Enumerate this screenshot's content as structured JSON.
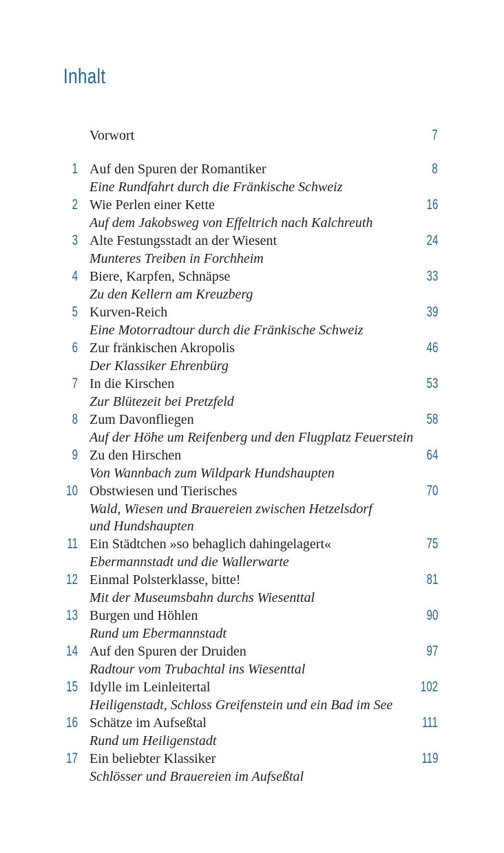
{
  "page": {
    "title": "Inhalt",
    "accent_color": "#25668f",
    "text_color": "#1d1d1b"
  },
  "toc": {
    "preface": {
      "label": "Vorwort",
      "page": "7"
    },
    "entries": [
      {
        "num": "1",
        "title": "Auf den Spuren der Romantiker",
        "page": "8",
        "subtitle_lines": [
          "Eine Rundfahrt durch die Fränkische Schweiz"
        ]
      },
      {
        "num": "2",
        "title": "Wie Perlen einer Kette",
        "page": "16",
        "subtitle_lines": [
          "Auf dem Jakobsweg von Effeltrich nach Kalchreuth"
        ]
      },
      {
        "num": "3",
        "title": "Alte Festungsstadt an der Wiesent",
        "page": "24",
        "subtitle_lines": [
          "Munteres Treiben in Forchheim"
        ]
      },
      {
        "num": "4",
        "title": "Biere, Karpfen, Schnäpse",
        "page": "33",
        "subtitle_lines": [
          "Zu den Kellern am Kreuzberg"
        ]
      },
      {
        "num": "5",
        "title": "Kurven-Reich",
        "page": "39",
        "subtitle_lines": [
          "Eine Motorradtour durch die Fränkische Schweiz"
        ]
      },
      {
        "num": "6",
        "title": "Zur fränkischen Akropolis",
        "page": "46",
        "subtitle_lines": [
          "Der Klassiker Ehrenbürg"
        ]
      },
      {
        "num": "7",
        "title": "In die Kirschen",
        "page": "53",
        "subtitle_lines": [
          "Zur Blütezeit bei Pretzfeld"
        ]
      },
      {
        "num": "8",
        "title": "Zum Davonfliegen",
        "page": "58",
        "subtitle_lines": [
          "Auf der Höhe um Reifenberg und den Flugplatz Feuerstein"
        ]
      },
      {
        "num": "9",
        "title": "Zu den Hirschen",
        "page": "64",
        "subtitle_lines": [
          "Von Wannbach zum Wildpark Hundshaupten"
        ]
      },
      {
        "num": "10",
        "title": "Obstwiesen und Tierisches",
        "page": "70",
        "subtitle_lines": [
          "Wald, Wiesen und Brauereien zwischen Hetzelsdorf",
          "und Hundshaupten"
        ]
      },
      {
        "num": "11",
        "title": "Ein Städtchen »so behaglich dahingelagert«",
        "page": "75",
        "subtitle_lines": [
          "Ebermannstadt und die Wallerwarte"
        ]
      },
      {
        "num": "12",
        "title": "Einmal Polsterklasse, bitte!",
        "page": "81",
        "subtitle_lines": [
          "Mit der Museumsbahn durchs Wiesenttal"
        ]
      },
      {
        "num": "13",
        "title": "Burgen und Höhlen",
        "page": "90",
        "subtitle_lines": [
          "Rund um Ebermannstadt"
        ]
      },
      {
        "num": "14",
        "title": "Auf den Spuren der Druiden",
        "page": "97",
        "subtitle_lines": [
          "Radtour vom Trubachtal ins Wiesenttal"
        ]
      },
      {
        "num": "15",
        "title": "Idylle im Leinleitertal",
        "page": "102",
        "subtitle_lines": [
          "Heiligenstadt, Schloss Greifenstein und ein Bad im See"
        ]
      },
      {
        "num": "16",
        "title": "Schätze im Aufseßtal",
        "page": "111",
        "subtitle_lines": [
          "Rund um Heiligenstadt"
        ]
      },
      {
        "num": "17",
        "title": "Ein beliebter Klassiker",
        "page": "119",
        "subtitle_lines": [
          "Schlösser und Brauereien im Aufseßtal"
        ]
      }
    ]
  }
}
